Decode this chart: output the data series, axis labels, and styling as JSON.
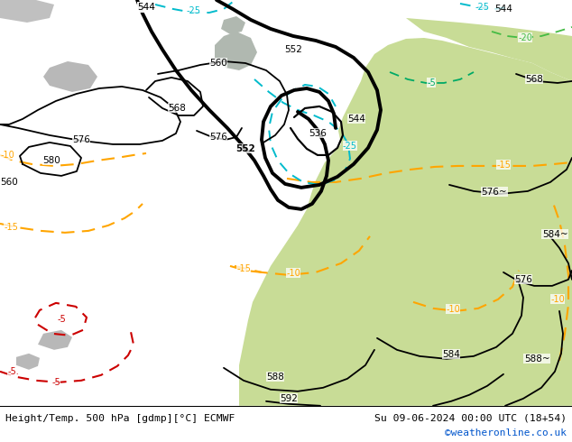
{
  "title_left": "Height/Temp. 500 hPa [gdmp][°C] ECMWF",
  "title_right": "Su 09-06-2024 00:00 UTC (18+54)",
  "watermark": "©weatheronline.co.uk",
  "fig_width": 6.34,
  "fig_height": 4.9,
  "dpi": 100,
  "ocean_color": "#c8c8c8",
  "land_warm_color": "#c8dc96",
  "land_cool_color": "#b8b8b8",
  "footer_color": "#ffffff",
  "black_contour_lw": 1.3,
  "thick_contour_lw": 2.8,
  "orange_color": "#ffa500",
  "red_color": "#cc0000",
  "cyan_color": "#00bbcc",
  "footer_title_color": "#000000",
  "watermark_color": "#0055cc"
}
